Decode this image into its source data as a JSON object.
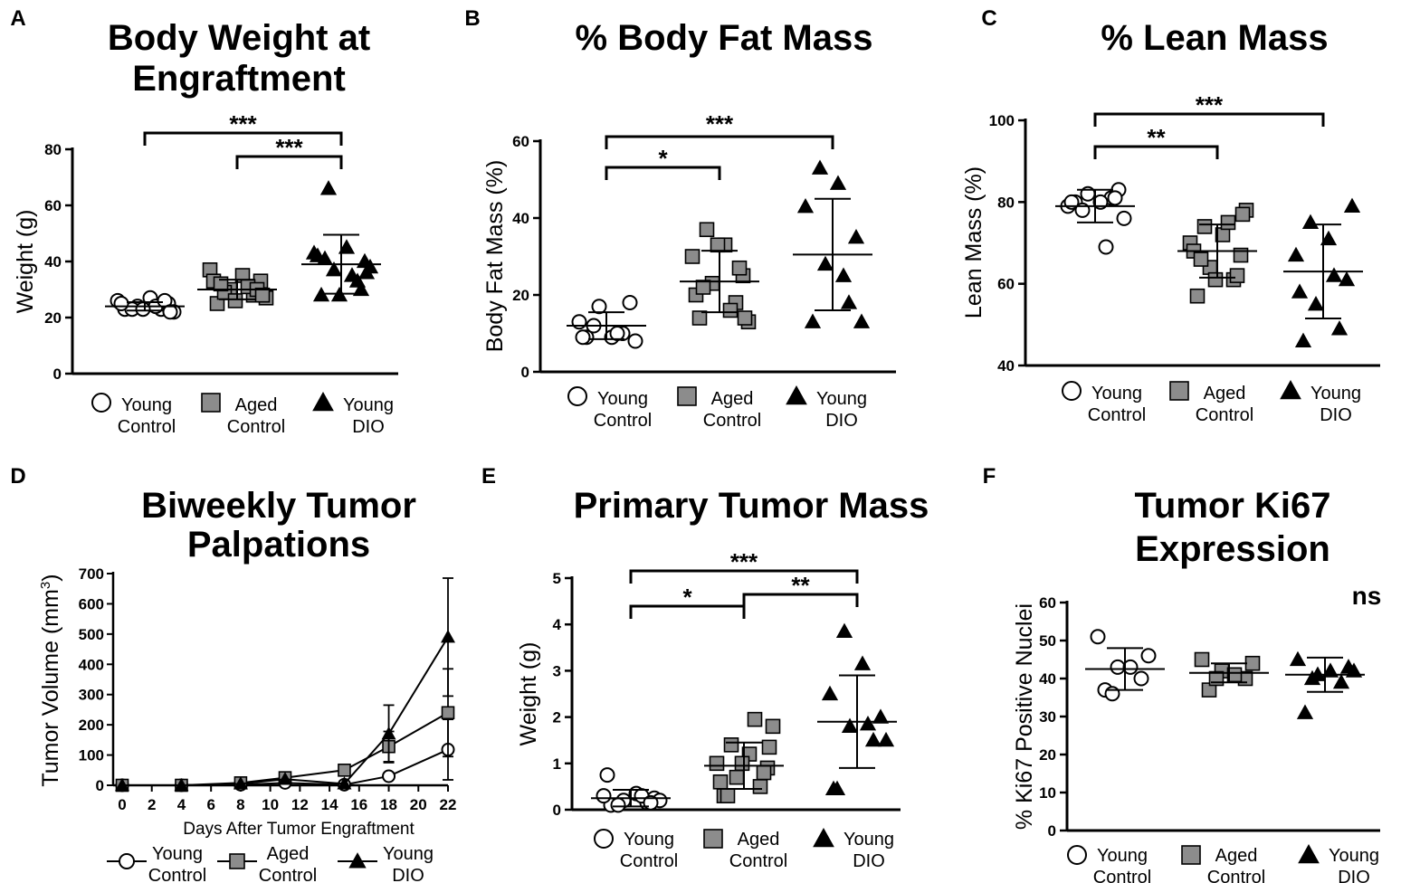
{
  "chart_data": [
    {
      "panel": "A",
      "type": "scatter",
      "title": [
        "Body Weight at",
        "Engraftment"
      ],
      "ylabel": "Weight (g)",
      "ylim": [
        0,
        80
      ],
      "yticks": [
        0,
        20,
        40,
        60,
        80
      ],
      "groups": [
        {
          "name": "Young Control",
          "legend": [
            "Young",
            "Control"
          ],
          "marker": "circle",
          "values": [
            23,
            23,
            24,
            25,
            26,
            27,
            23,
            22,
            24,
            25,
            26,
            23,
            22
          ],
          "mean": 24,
          "sd": 1.5
        },
        {
          "name": "Aged Control",
          "legend": [
            "Aged",
            "Control"
          ],
          "marker": "square",
          "values": [
            25,
            28,
            30,
            33,
            37,
            35,
            29,
            27,
            31,
            33,
            30,
            26,
            28,
            32
          ],
          "mean": 30,
          "sd": 3.5
        },
        {
          "name": "Young DIO",
          "legend": [
            "Young",
            "DIO"
          ],
          "marker": "triangle",
          "values": [
            28,
            33,
            37,
            40,
            43,
            45,
            66,
            38,
            35,
            42,
            30,
            28,
            36,
            41
          ],
          "mean": 39,
          "sd": 10.5
        }
      ],
      "comparisons": [
        {
          "from": 0,
          "to": 2,
          "label": "***"
        },
        {
          "from": 1,
          "to": 2,
          "label": "***"
        }
      ]
    },
    {
      "panel": "B",
      "type": "scatter",
      "title": [
        "% Body Fat Mass"
      ],
      "ylabel": "Body Fat Mass (%)",
      "ylim": [
        0,
        60
      ],
      "yticks": [
        0,
        20,
        40,
        60
      ],
      "groups": [
        {
          "name": "Young Control",
          "legend": [
            "Young",
            "Control"
          ],
          "marker": "circle",
          "values": [
            9,
            10,
            17,
            18,
            13,
            9,
            12,
            8,
            10,
            9
          ],
          "mean": 12,
          "sd": 3.5
        },
        {
          "name": "Aged Control",
          "legend": [
            "Aged",
            "Control"
          ],
          "marker": "square",
          "values": [
            14,
            18,
            23,
            25,
            30,
            33,
            37,
            13,
            16,
            20,
            27,
            33,
            14,
            22
          ],
          "mean": 23.5,
          "sd": 8
        },
        {
          "name": "Young DIO",
          "legend": [
            "Young",
            "DIO"
          ],
          "marker": "triangle",
          "values": [
            13,
            18,
            28,
            35,
            43,
            49,
            53,
            13,
            25
          ],
          "mean": 30.5,
          "sd": 14.5
        }
      ],
      "comparisons": [
        {
          "from": 0,
          "to": 1,
          "label": "*"
        },
        {
          "from": 0,
          "to": 2,
          "label": "***"
        }
      ]
    },
    {
      "panel": "C",
      "type": "scatter",
      "title": [
        "% Lean Mass"
      ],
      "ylabel": "Lean Mass (%)",
      "ylim": [
        40,
        100
      ],
      "yticks": [
        40,
        60,
        80,
        100
      ],
      "groups": [
        {
          "name": "Young Control",
          "legend": [
            "Young",
            "Control"
          ],
          "marker": "circle",
          "values": [
            80,
            81,
            82,
            83,
            79,
            80,
            78,
            76,
            69,
            80,
            81
          ],
          "mean": 79,
          "sd": 4
        },
        {
          "name": "Aged Control",
          "legend": [
            "Aged",
            "Control"
          ],
          "marker": "square",
          "values": [
            57,
            61,
            64,
            67,
            70,
            72,
            74,
            78,
            75,
            68,
            62,
            61,
            77,
            66
          ],
          "mean": 68,
          "sd": 6.5
        },
        {
          "name": "Young DIO",
          "legend": [
            "Young",
            "DIO"
          ],
          "marker": "triangle",
          "values": [
            46,
            49,
            55,
            61,
            67,
            71,
            75,
            79,
            62,
            58
          ],
          "mean": 63,
          "sd": 11.5
        }
      ],
      "comparisons": [
        {
          "from": 0,
          "to": 1,
          "label": "**"
        },
        {
          "from": 0,
          "to": 2,
          "label": "***"
        }
      ]
    },
    {
      "panel": "D",
      "type": "line",
      "title": [
        "Biweekly Tumor",
        "Palpations"
      ],
      "ylabel": "Tumor Volume (mm",
      "ylabel_sup": "3",
      "ylabel_end": ")",
      "xlabel": "Days After Tumor Engraftment",
      "xlim": [
        0,
        22
      ],
      "xticks": [
        0,
        2,
        4,
        6,
        8,
        10,
        12,
        14,
        16,
        18,
        20,
        22
      ],
      "ylim": [
        0,
        700
      ],
      "yticks": [
        0,
        100,
        200,
        300,
        400,
        500,
        600,
        700
      ],
      "series": [
        {
          "name": "Young Control",
          "legend": [
            "Young",
            "Control"
          ],
          "marker": "circle",
          "x": [
            0,
            4,
            8,
            11,
            15,
            18,
            22
          ],
          "values": [
            0,
            0,
            2,
            8,
            2,
            30,
            118
          ],
          "err": [
            0,
            0,
            0,
            0,
            0,
            0,
            100
          ]
        },
        {
          "name": "Aged Control",
          "legend": [
            "Aged",
            "Control"
          ],
          "marker": "square",
          "x": [
            0,
            4,
            8,
            11,
            15,
            18,
            22
          ],
          "values": [
            0,
            0,
            8,
            25,
            50,
            128,
            240
          ],
          "err": [
            0,
            0,
            0,
            0,
            0,
            50,
            145
          ]
        },
        {
          "name": "Young DIO",
          "legend": [
            "Young",
            "DIO"
          ],
          "marker": "triangle",
          "x": [
            0,
            4,
            8,
            11,
            15,
            18,
            22
          ],
          "values": [
            0,
            0,
            5,
            20,
            5,
            170,
            490
          ],
          "err": [
            0,
            0,
            0,
            0,
            0,
            95,
            195
          ]
        }
      ]
    },
    {
      "panel": "E",
      "type": "scatter",
      "title": [
        "Primary Tumor Mass"
      ],
      "ylabel": "Weight (g)",
      "ylim": [
        0,
        5
      ],
      "yticks": [
        0,
        1,
        2,
        3,
        4,
        5
      ],
      "groups": [
        {
          "name": "Young Control",
          "legend": [
            "Young",
            "Control"
          ],
          "marker": "circle",
          "values": [
            0.1,
            0.15,
            0.2,
            0.25,
            0.3,
            0.35,
            0.1,
            0.2,
            0.3,
            0.75,
            0.15
          ],
          "mean": 0.25,
          "sd": 0.18
        },
        {
          "name": "Aged Control",
          "legend": [
            "Aged",
            "Control"
          ],
          "marker": "square",
          "values": [
            0.3,
            0.5,
            0.7,
            0.9,
            1.0,
            1.2,
            1.4,
            1.8,
            1.95,
            0.6,
            0.8,
            1.0,
            1.35,
            0.3
          ],
          "mean": 0.95,
          "sd": 0.5
        },
        {
          "name": "Young DIO",
          "legend": [
            "Young",
            "DIO"
          ],
          "marker": "triangle",
          "values": [
            0.45,
            1.5,
            1.8,
            2.0,
            2.5,
            3.15,
            3.85,
            1.5,
            1.85,
            0.45
          ],
          "mean": 1.9,
          "sd": 1.0
        }
      ],
      "comparisons": [
        {
          "from": 0,
          "to": 1,
          "label": "*"
        },
        {
          "from": 1,
          "to": 2,
          "label": "**"
        },
        {
          "from": 0,
          "to": 2,
          "label": "***"
        }
      ]
    },
    {
      "panel": "F",
      "type": "scatter",
      "title": [
        "Tumor Ki67",
        "Expression"
      ],
      "ylabel": "% Ki67 Positive Nuclei",
      "ylim": [
        0,
        60
      ],
      "yticks": [
        0,
        10,
        20,
        30,
        40,
        50,
        60
      ],
      "annotation": "ns",
      "groups": [
        {
          "name": "Young Control",
          "legend": [
            "Young",
            "Control"
          ],
          "marker": "circle",
          "values": [
            37,
            40,
            43,
            46,
            51,
            43,
            36
          ],
          "mean": 42.5,
          "sd": 5.5
        },
        {
          "name": "Aged Control",
          "legend": [
            "Aged",
            "Control"
          ],
          "marker": "square",
          "values": [
            37,
            40,
            42,
            44,
            45,
            41,
            40
          ],
          "mean": 41.5,
          "sd": 2.5
        },
        {
          "name": "Young DIO",
          "legend": [
            "Young",
            "DIO"
          ],
          "marker": "triangle",
          "values": [
            31,
            39,
            41,
            43,
            45,
            42,
            40,
            42
          ],
          "mean": 41,
          "sd": 4.5
        }
      ]
    }
  ]
}
